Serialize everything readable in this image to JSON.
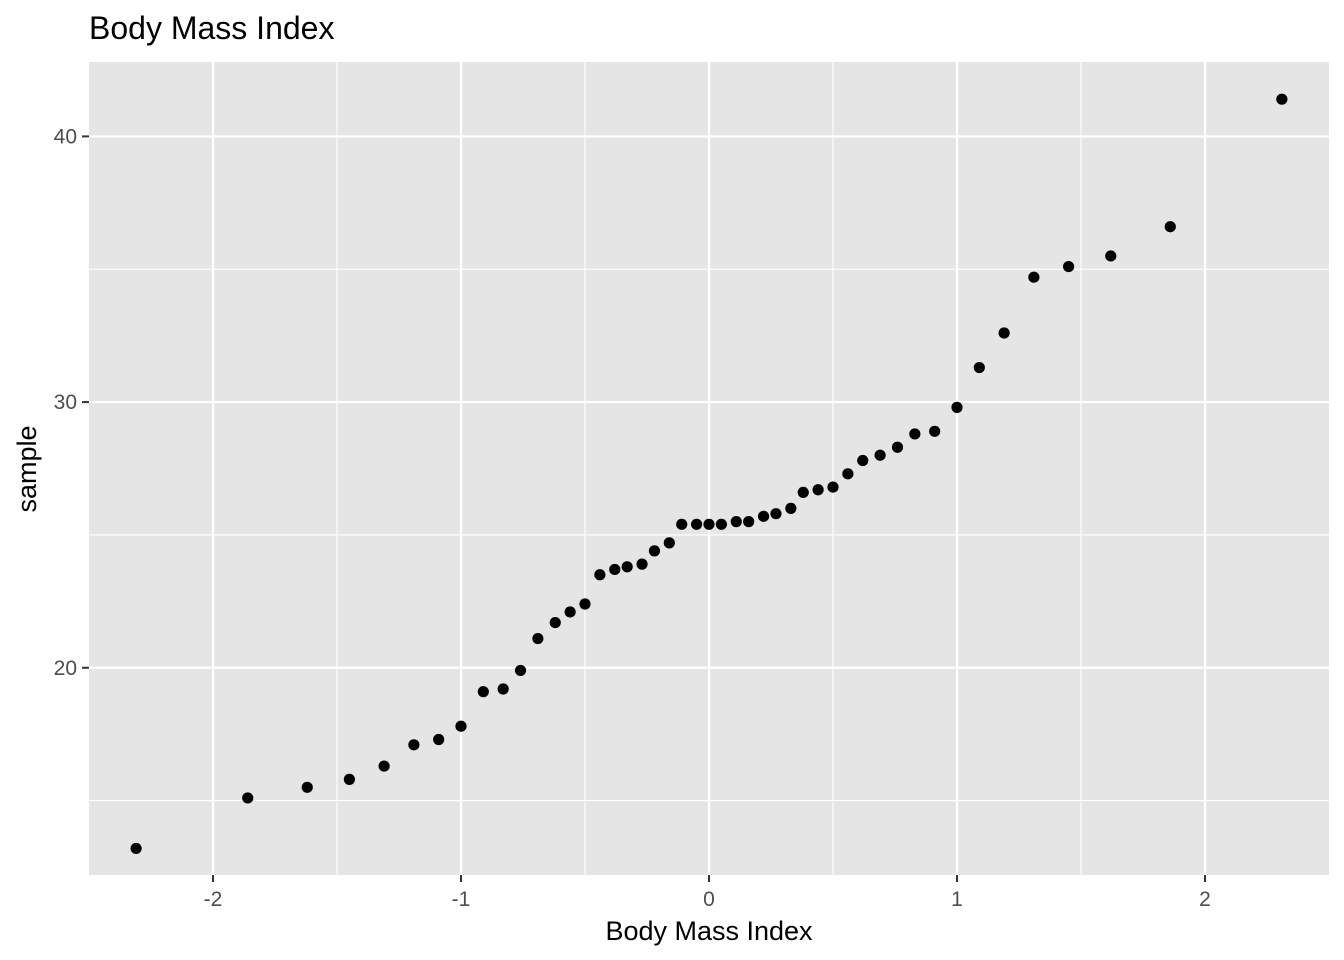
{
  "chart_data": {
    "type": "scatter",
    "title": "Body Mass Index",
    "xlabel": "Body Mass Index",
    "ylabel": "sample",
    "xlim": [
      -2.5,
      2.5
    ],
    "ylim": [
      12.2,
      42.8
    ],
    "x_major_ticks": [
      -2,
      -1,
      0,
      1,
      2
    ],
    "x_tick_labels": [
      "-2",
      "-1",
      "0",
      "1",
      "2"
    ],
    "x_minor_ticks": [
      -1.5,
      -0.5,
      0.5,
      1.5
    ],
    "y_major_ticks": [
      20,
      30,
      40
    ],
    "y_tick_labels": [
      "20",
      "30",
      "40"
    ],
    "y_minor_ticks": [
      15,
      25,
      35
    ],
    "grid": true,
    "panel_background": "#e5e5e5",
    "grid_color": "#ffffff",
    "point_color": "#000000",
    "series": [
      {
        "x": [
          -2.31,
          -1.86,
          -1.62,
          -1.45,
          -1.31,
          -1.19,
          -1.09,
          -1.0,
          -0.91,
          -0.83,
          -0.76,
          -0.69,
          -0.62,
          -0.56,
          -0.5,
          -0.44,
          -0.38,
          -0.33,
          -0.27,
          -0.22,
          -0.16,
          -0.11,
          -0.05,
          0.0,
          0.05,
          0.11,
          0.16,
          0.22,
          0.27,
          0.33,
          0.38,
          0.44,
          0.5,
          0.56,
          0.62,
          0.69,
          0.76,
          0.83,
          0.91,
          1.0,
          1.09,
          1.19,
          1.31,
          1.45,
          1.62,
          1.86,
          2.31
        ],
        "y": [
          13.2,
          15.1,
          15.5,
          15.8,
          16.3,
          17.1,
          17.3,
          17.8,
          19.1,
          19.2,
          19.9,
          21.1,
          21.7,
          22.1,
          22.4,
          23.5,
          23.7,
          23.8,
          23.9,
          24.4,
          24.7,
          25.4,
          25.4,
          25.4,
          25.4,
          25.5,
          25.5,
          25.7,
          25.8,
          26.0,
          26.6,
          26.7,
          26.8,
          27.3,
          27.8,
          28.0,
          28.3,
          28.8,
          28.9,
          29.8,
          31.3,
          32.6,
          34.7,
          35.1,
          35.5,
          36.6,
          41.4
        ]
      }
    ]
  }
}
